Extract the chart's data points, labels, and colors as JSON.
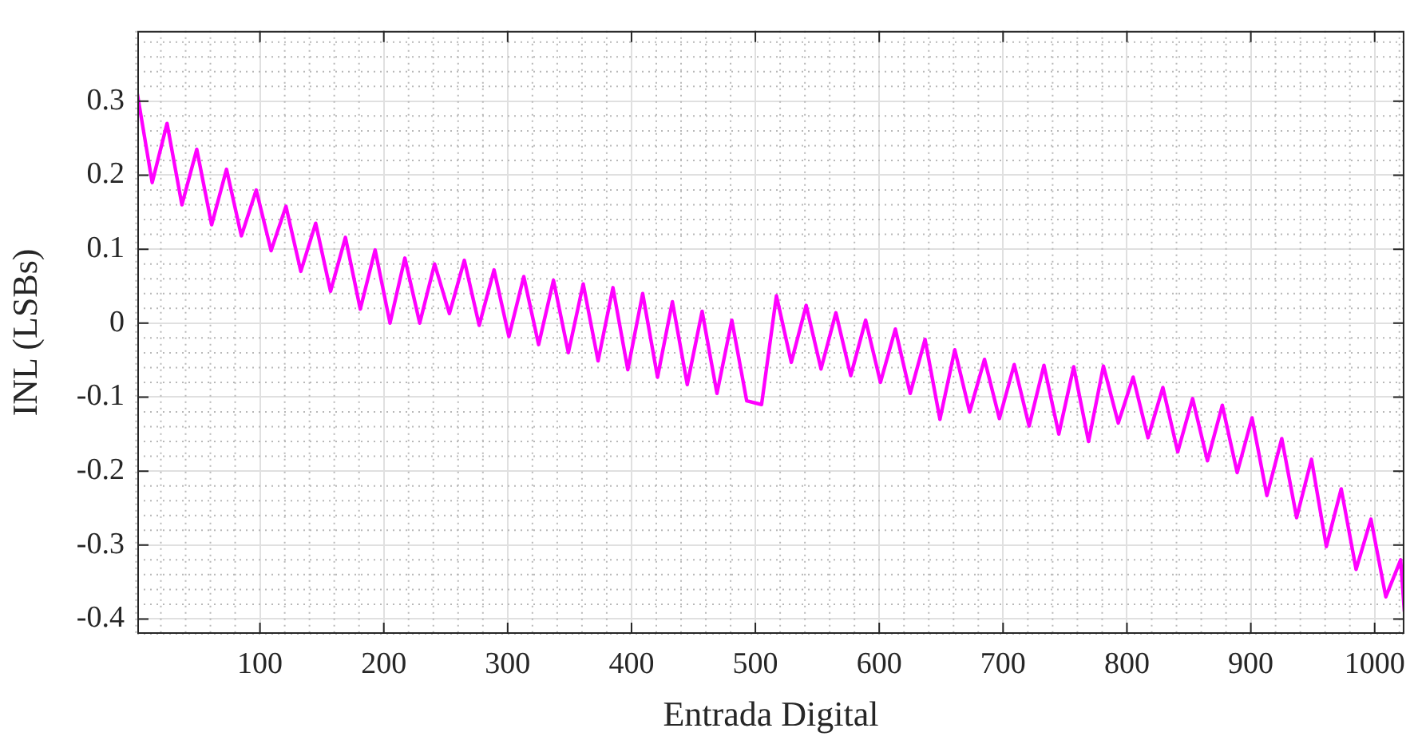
{
  "chart_data": {
    "type": "line",
    "xlabel": "Entrada Digital",
    "ylabel": "INL (LSBs)",
    "x": [
      1,
      13,
      25,
      37,
      49,
      61,
      73,
      85,
      97,
      109,
      121,
      133,
      145,
      157,
      169,
      181,
      193,
      205,
      217,
      229,
      241,
      253,
      265,
      277,
      289,
      301,
      313,
      325,
      337,
      349,
      361,
      373,
      385,
      397,
      409,
      421,
      433,
      445,
      457,
      469,
      481,
      493,
      505,
      517,
      529,
      541,
      553,
      565,
      577,
      589,
      601,
      613,
      625,
      637,
      649,
      661,
      673,
      685,
      697,
      709,
      721,
      733,
      745,
      757,
      769,
      781,
      793,
      805,
      817,
      829,
      841,
      853,
      865,
      877,
      889,
      901,
      913,
      925,
      937,
      949,
      961,
      973,
      985,
      997,
      1009,
      1021,
      1024
    ],
    "values": [
      0.31,
      0.19,
      0.27,
      0.16,
      0.235,
      0.133,
      0.208,
      0.118,
      0.18,
      0.098,
      0.158,
      0.07,
      0.135,
      0.043,
      0.116,
      0.019,
      0.099,
      0.0,
      0.088,
      0.0,
      0.08,
      0.013,
      0.085,
      -0.003,
      0.072,
      -0.018,
      0.063,
      -0.029,
      0.058,
      -0.04,
      0.053,
      -0.051,
      0.048,
      -0.063,
      0.04,
      -0.073,
      0.029,
      -0.083,
      0.016,
      -0.095,
      0.004,
      -0.105,
      -0.11,
      0.037,
      -0.053,
      0.024,
      -0.062,
      0.014,
      -0.071,
      0.004,
      -0.08,
      -0.008,
      -0.095,
      -0.022,
      -0.13,
      -0.036,
      -0.12,
      -0.049,
      -0.129,
      -0.056,
      -0.139,
      -0.057,
      -0.15,
      -0.059,
      -0.16,
      -0.058,
      -0.135,
      -0.073,
      -0.155,
      -0.087,
      -0.174,
      -0.102,
      -0.186,
      -0.111,
      -0.202,
      -0.128,
      -0.233,
      -0.156,
      -0.263,
      -0.184,
      -0.302,
      -0.224,
      -0.333,
      -0.265,
      -0.37,
      -0.32,
      -0.39
    ],
    "color": "#ff00ff",
    "xlim": [
      1,
      1024
    ],
    "ylim": [
      -0.42,
      0.395
    ],
    "xticks": [
      100,
      200,
      300,
      400,
      500,
      600,
      700,
      800,
      900,
      1000
    ],
    "yticks": [
      -0.4,
      -0.3,
      -0.2,
      -0.1,
      0,
      0.1,
      0.2,
      0.3
    ],
    "grid": true
  }
}
